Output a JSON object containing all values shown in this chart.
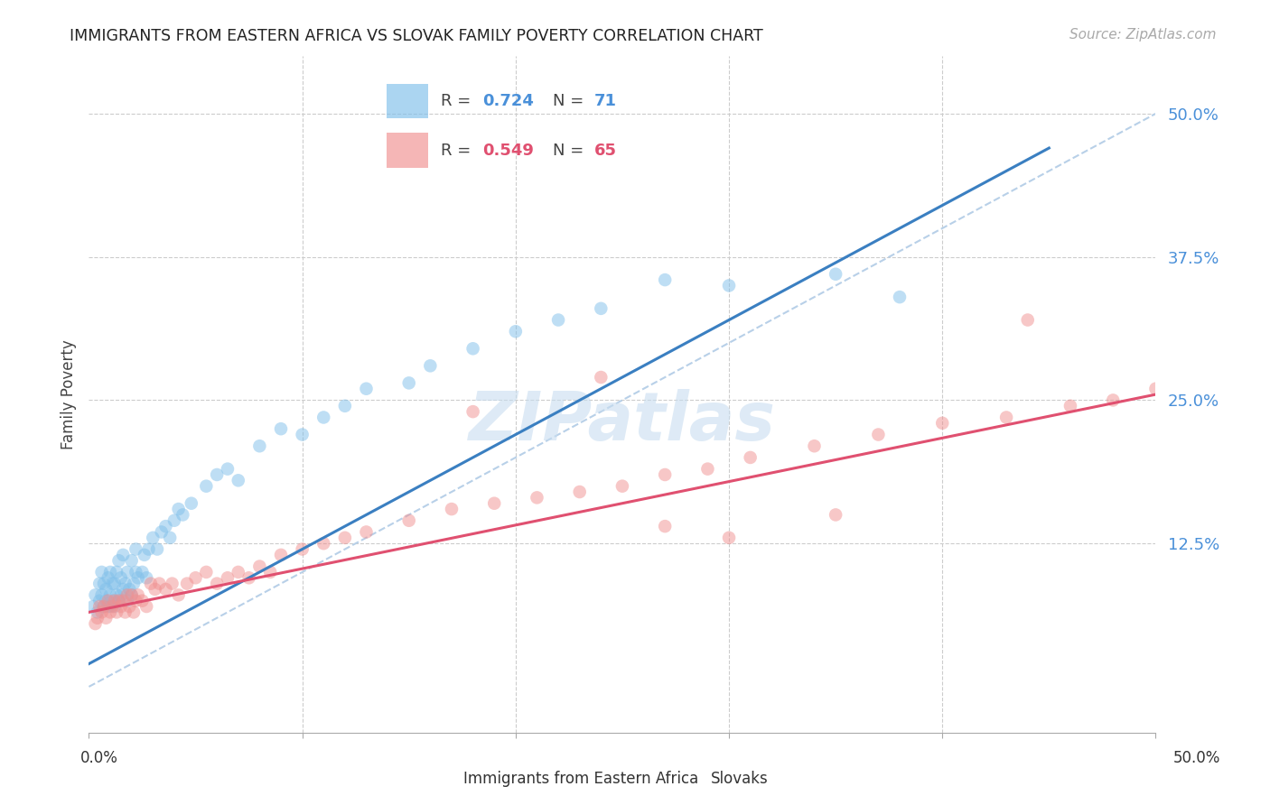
{
  "title": "IMMIGRANTS FROM EASTERN AFRICA VS SLOVAK FAMILY POVERTY CORRELATION CHART",
  "source": "Source: ZipAtlas.com",
  "ylabel": "Family Poverty",
  "xlim": [
    0.0,
    0.5
  ],
  "ylim": [
    -0.04,
    0.55
  ],
  "blue_R": 0.724,
  "blue_N": 71,
  "pink_R": 0.549,
  "pink_N": 65,
  "blue_color": "#7fbfea",
  "pink_color": "#f09090",
  "blue_line_color": "#3a7fc1",
  "pink_line_color": "#e05070",
  "dashed_line_color": "#b8d0e8",
  "watermark": "ZIPatlas",
  "legend_label_blue": "Immigrants from Eastern Africa",
  "legend_label_pink": "Slovaks",
  "blue_line_x0": 0.0,
  "blue_line_y0": 0.02,
  "blue_line_x1": 0.45,
  "blue_line_y1": 0.47,
  "pink_line_x0": 0.0,
  "pink_line_y0": 0.065,
  "pink_line_x1": 0.5,
  "pink_line_y1": 0.255,
  "blue_scatter_x": [
    0.002,
    0.003,
    0.004,
    0.005,
    0.005,
    0.006,
    0.006,
    0.007,
    0.007,
    0.008,
    0.008,
    0.009,
    0.009,
    0.01,
    0.01,
    0.01,
    0.011,
    0.011,
    0.012,
    0.012,
    0.013,
    0.013,
    0.014,
    0.014,
    0.015,
    0.015,
    0.016,
    0.016,
    0.017,
    0.018,
    0.018,
    0.019,
    0.02,
    0.02,
    0.021,
    0.022,
    0.022,
    0.023,
    0.025,
    0.026,
    0.027,
    0.028,
    0.03,
    0.032,
    0.034,
    0.036,
    0.038,
    0.04,
    0.042,
    0.044,
    0.048,
    0.055,
    0.06,
    0.065,
    0.07,
    0.08,
    0.09,
    0.1,
    0.11,
    0.12,
    0.13,
    0.15,
    0.16,
    0.18,
    0.2,
    0.22,
    0.24,
    0.27,
    0.3,
    0.35,
    0.38
  ],
  "blue_scatter_y": [
    0.07,
    0.08,
    0.065,
    0.09,
    0.075,
    0.08,
    0.1,
    0.07,
    0.09,
    0.075,
    0.085,
    0.07,
    0.095,
    0.07,
    0.08,
    0.1,
    0.075,
    0.09,
    0.07,
    0.09,
    0.08,
    0.1,
    0.075,
    0.11,
    0.08,
    0.095,
    0.085,
    0.115,
    0.09,
    0.075,
    0.1,
    0.085,
    0.08,
    0.11,
    0.09,
    0.1,
    0.12,
    0.095,
    0.1,
    0.115,
    0.095,
    0.12,
    0.13,
    0.12,
    0.135,
    0.14,
    0.13,
    0.145,
    0.155,
    0.15,
    0.16,
    0.175,
    0.185,
    0.19,
    0.18,
    0.21,
    0.225,
    0.22,
    0.235,
    0.245,
    0.26,
    0.265,
    0.28,
    0.295,
    0.31,
    0.32,
    0.33,
    0.355,
    0.35,
    0.36,
    0.34
  ],
  "pink_scatter_x": [
    0.003,
    0.004,
    0.005,
    0.006,
    0.007,
    0.008,
    0.009,
    0.01,
    0.011,
    0.012,
    0.013,
    0.014,
    0.015,
    0.016,
    0.017,
    0.018,
    0.019,
    0.02,
    0.021,
    0.022,
    0.023,
    0.025,
    0.027,
    0.029,
    0.031,
    0.033,
    0.036,
    0.039,
    0.042,
    0.046,
    0.05,
    0.055,
    0.06,
    0.065,
    0.07,
    0.075,
    0.08,
    0.085,
    0.09,
    0.1,
    0.11,
    0.12,
    0.13,
    0.15,
    0.17,
    0.19,
    0.21,
    0.23,
    0.25,
    0.27,
    0.29,
    0.31,
    0.34,
    0.37,
    0.4,
    0.43,
    0.46,
    0.48,
    0.5,
    0.27,
    0.3,
    0.18,
    0.24,
    0.35,
    0.44
  ],
  "pink_scatter_y": [
    0.055,
    0.06,
    0.07,
    0.065,
    0.07,
    0.06,
    0.075,
    0.065,
    0.07,
    0.075,
    0.065,
    0.075,
    0.07,
    0.075,
    0.065,
    0.08,
    0.07,
    0.08,
    0.065,
    0.075,
    0.08,
    0.075,
    0.07,
    0.09,
    0.085,
    0.09,
    0.085,
    0.09,
    0.08,
    0.09,
    0.095,
    0.1,
    0.09,
    0.095,
    0.1,
    0.095,
    0.105,
    0.1,
    0.115,
    0.12,
    0.125,
    0.13,
    0.135,
    0.145,
    0.155,
    0.16,
    0.165,
    0.17,
    0.175,
    0.185,
    0.19,
    0.2,
    0.21,
    0.22,
    0.23,
    0.235,
    0.245,
    0.25,
    0.26,
    0.14,
    0.13,
    0.24,
    0.27,
    0.15,
    0.32
  ],
  "ytick_positions": [
    0.0,
    0.125,
    0.25,
    0.375,
    0.5
  ],
  "ytick_labels": [
    "",
    "12.5%",
    "25.0%",
    "37.5%",
    "50.0%"
  ],
  "xtick_label_left": "0.0%",
  "xtick_label_right": "50.0%"
}
